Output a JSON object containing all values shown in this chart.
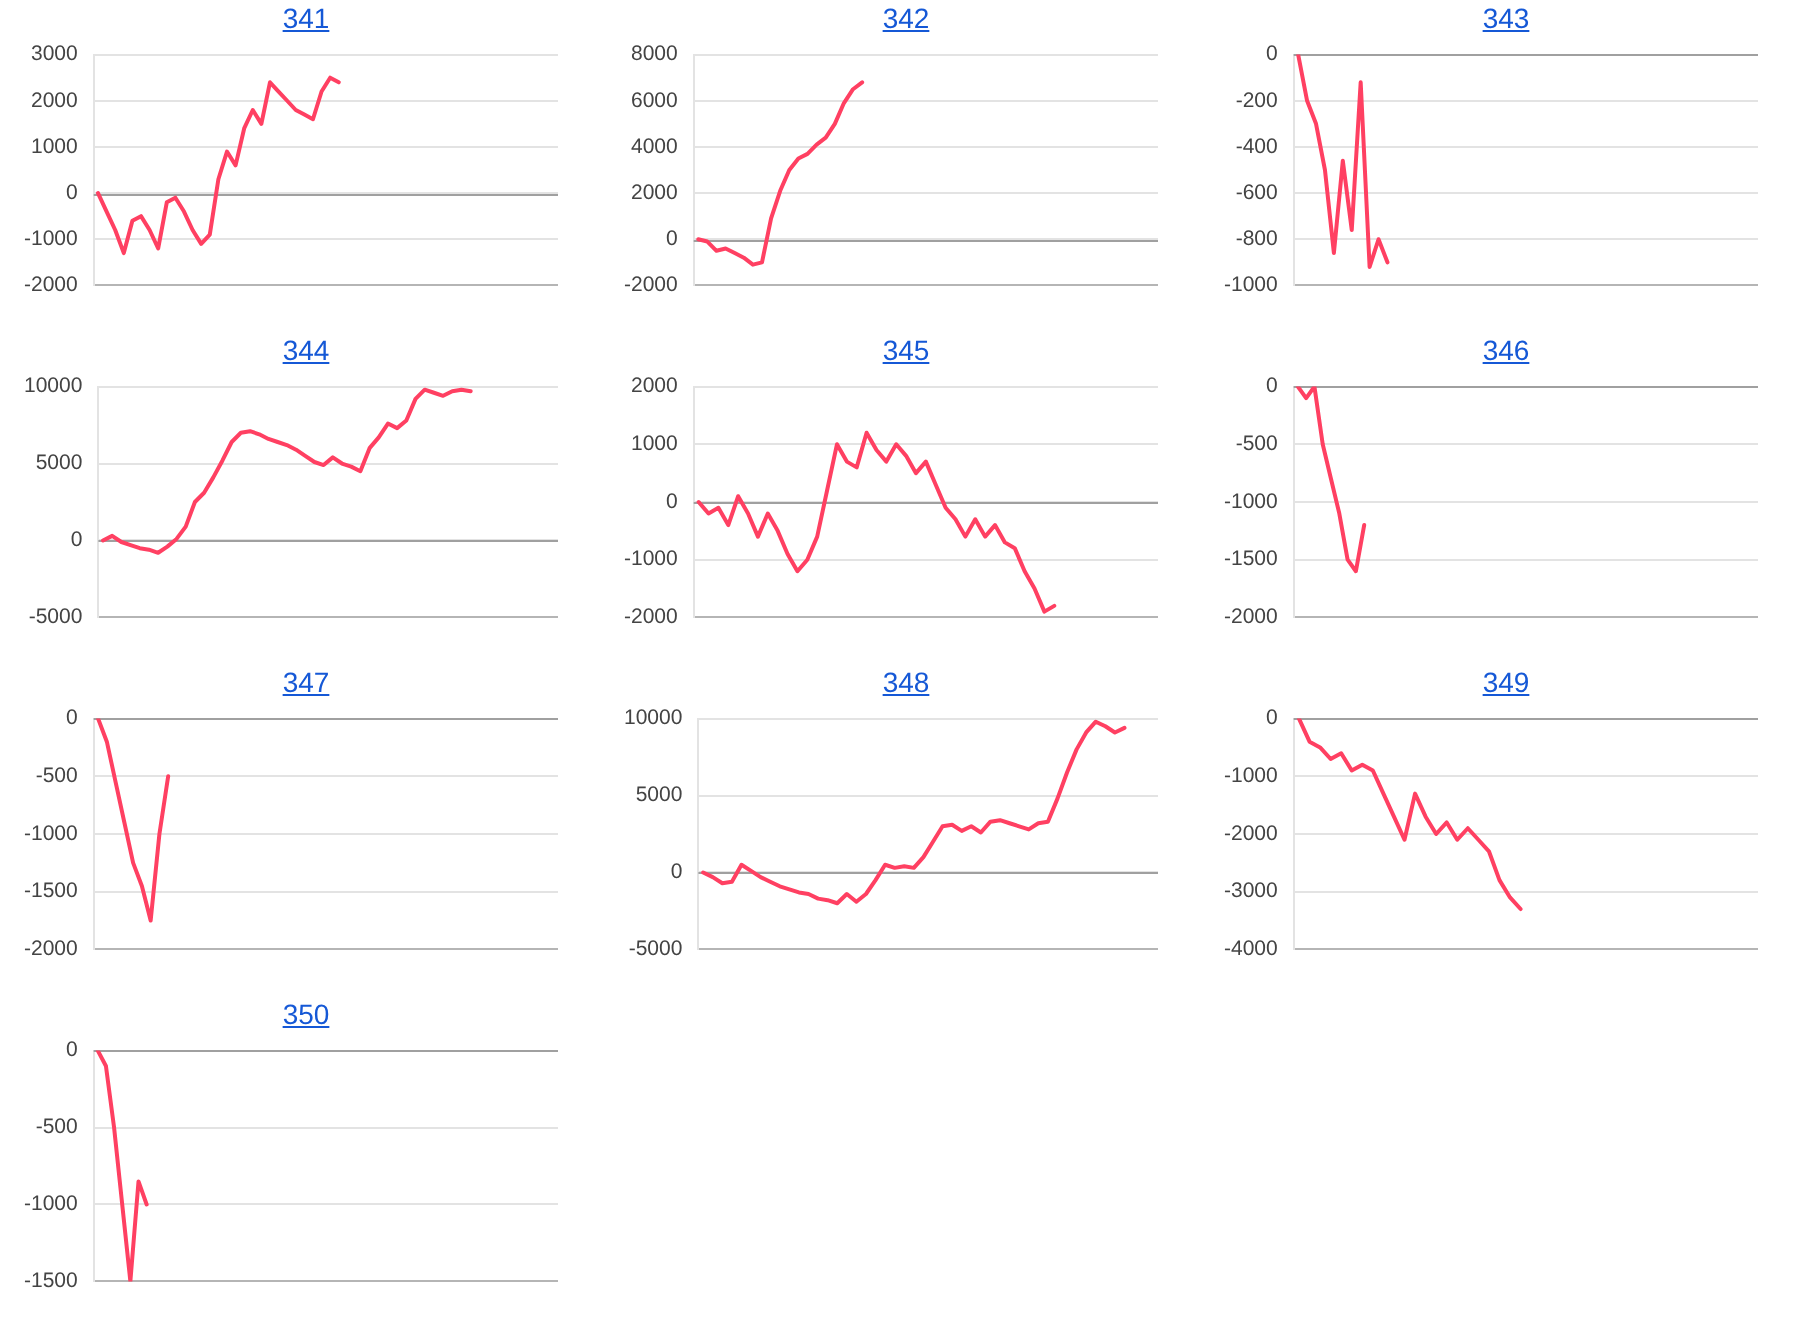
{
  "chart_data": [
    {
      "type": "line",
      "title": "341",
      "categories": [
        null,
        null,
        null,
        null,
        null,
        null,
        null,
        null,
        null,
        null,
        null,
        null,
        null,
        null,
        null,
        null,
        null,
        null,
        null,
        null,
        null,
        null,
        null,
        null,
        null,
        null,
        null,
        null,
        null,
        null,
        null,
        null,
        null,
        null,
        null,
        null,
        null,
        null,
        null,
        null,
        null,
        null,
        null,
        null,
        null,
        null,
        null,
        null,
        null,
        null,
        null,
        null,
        null,
        null
      ],
      "series": [
        {
          "color": "#ff4062",
          "values": [
            0,
            -400,
            -800,
            -1300,
            -600,
            -500,
            -800,
            -1200,
            -200,
            -100,
            -400,
            -800,
            -1100,
            -900,
            300,
            900,
            600,
            1400,
            1800,
            1500,
            2400,
            2200,
            2000,
            1800,
            1700,
            1600,
            2200,
            2500,
            2400,
            null,
            null,
            null,
            null,
            null,
            null,
            null,
            null,
            null,
            null,
            null,
            null,
            null,
            null,
            null,
            null,
            null,
            null,
            null,
            null,
            null,
            null,
            null,
            null,
            null
          ]
        }
      ],
      "ylim": [
        -2000,
        3000
      ],
      "yticks": [
        -2000,
        -1000,
        0,
        1000,
        2000,
        3000
      ],
      "grid": "y",
      "tick_labels": "y",
      "ref_lines": [
        {
          "axis": "y",
          "value": 0,
          "color": "#a0a0a0"
        }
      ]
    },
    {
      "type": "line",
      "title": "342",
      "categories": [
        null,
        null,
        null,
        null,
        null,
        null,
        null,
        null,
        null,
        null,
        null,
        null,
        null,
        null,
        null,
        null,
        null,
        null,
        null,
        null,
        null,
        null,
        null,
        null,
        null,
        null,
        null,
        null,
        null,
        null,
        null,
        null,
        null,
        null,
        null,
        null,
        null,
        null,
        null,
        null,
        null,
        null,
        null,
        null,
        null,
        null,
        null,
        null,
        null,
        null,
        null
      ],
      "series": [
        {
          "color": "#ff4062",
          "values": [
            0,
            -100,
            -500,
            -400,
            -600,
            -800,
            -1100,
            -1000,
            900,
            2100,
            3000,
            3500,
            3700,
            4100,
            4400,
            5000,
            5900,
            6500,
            6800,
            null,
            null,
            null,
            null,
            null,
            null,
            null,
            null,
            null,
            null,
            null,
            null,
            null,
            null,
            null,
            null,
            null,
            null,
            null,
            null,
            null,
            null,
            null,
            null,
            null,
            null,
            null,
            null,
            null,
            null,
            null,
            null
          ]
        }
      ],
      "ylim": [
        -2000,
        8000
      ],
      "yticks": [
        -2000,
        0,
        2000,
        4000,
        6000,
        8000
      ],
      "grid": "y",
      "tick_labels": "y",
      "ref_lines": [
        {
          "axis": "y",
          "value": 0,
          "color": "#a0a0a0"
        }
      ]
    },
    {
      "type": "line",
      "title": "343",
      "categories": [
        null,
        null,
        null,
        null,
        null,
        null,
        null,
        null,
        null,
        null,
        null,
        null,
        null,
        null,
        null,
        null,
        null,
        null,
        null,
        null,
        null,
        null,
        null,
        null,
        null,
        null,
        null,
        null,
        null,
        null,
        null,
        null,
        null,
        null,
        null,
        null,
        null,
        null,
        null,
        null,
        null,
        null,
        null,
        null,
        null,
        null,
        null,
        null,
        null,
        null,
        null,
        null
      ],
      "series": [
        {
          "color": "#ff4062",
          "values": [
            0,
            -200,
            -300,
            -500,
            -860,
            -460,
            -760,
            -120,
            -920,
            -800,
            -900,
            null,
            null,
            null,
            null,
            null,
            null,
            null,
            null,
            null,
            null,
            null,
            null,
            null,
            null,
            null,
            null,
            null,
            null,
            null,
            null,
            null,
            null,
            null,
            null,
            null,
            null,
            null,
            null,
            null,
            null,
            null,
            null,
            null,
            null,
            null,
            null,
            null,
            null,
            null,
            null,
            null
          ]
        }
      ],
      "ylim": [
        -1000,
        0
      ],
      "yticks": [
        -1000,
        -800,
        -600,
        -400,
        -200,
        0
      ],
      "grid": "y",
      "tick_labels": "y",
      "ref_lines": [
        {
          "axis": "y",
          "value": 0,
          "color": "#a0a0a0"
        }
      ]
    },
    {
      "type": "line",
      "title": "344",
      "categories": [
        null,
        null,
        null,
        null,
        null,
        null,
        null,
        null,
        null,
        null,
        null,
        null,
        null,
        null,
        null,
        null,
        null,
        null,
        null,
        null,
        null,
        null,
        null,
        null,
        null,
        null,
        null,
        null,
        null,
        null,
        null,
        null,
        null,
        null,
        null,
        null,
        null,
        null,
        null,
        null,
        null,
        null,
        null,
        null,
        null,
        null,
        null,
        null,
        null,
        null
      ],
      "series": [
        {
          "color": "#ff4062",
          "values": [
            0,
            300,
            -100,
            -300,
            -500,
            -600,
            -800,
            -400,
            100,
            900,
            2500,
            3100,
            4100,
            5200,
            6400,
            7000,
            7100,
            6900,
            6600,
            6400,
            6200,
            5900,
            5500,
            5100,
            4900,
            5400,
            5000,
            4800,
            4500,
            6000,
            6700,
            7600,
            7300,
            7800,
            9200,
            9800,
            9600,
            9400,
            9700,
            9800,
            9700,
            null,
            null,
            null,
            null,
            null,
            null,
            null,
            null,
            null
          ]
        }
      ],
      "ylim": [
        -5000,
        10000
      ],
      "yticks": [
        -5000,
        0,
        5000,
        10000
      ],
      "grid": "y",
      "tick_labels": "y",
      "ref_lines": [
        {
          "axis": "y",
          "value": 0,
          "color": "#a0a0a0"
        }
      ]
    },
    {
      "type": "line",
      "title": "345",
      "categories": [
        null,
        null,
        null,
        null,
        null,
        null,
        null,
        null,
        null,
        null,
        null,
        null,
        null,
        null,
        null,
        null,
        null,
        null,
        null,
        null,
        null,
        null,
        null,
        null,
        null,
        null,
        null,
        null,
        null,
        null,
        null,
        null,
        null,
        null,
        null,
        null,
        null,
        null,
        null,
        null,
        null,
        null,
        null,
        null,
        null,
        null,
        null
      ],
      "series": [
        {
          "color": "#ff4062",
          "values": [
            0,
            -200,
            -100,
            -400,
            100,
            -200,
            -600,
            -200,
            -500,
            -900,
            -1200,
            -1000,
            -600,
            200,
            1000,
            700,
            600,
            1200,
            900,
            700,
            1000,
            800,
            500,
            700,
            300,
            -100,
            -300,
            -600,
            -300,
            -600,
            -400,
            -700,
            -800,
            -1200,
            -1500,
            -1900,
            -1800,
            null,
            null,
            null,
            null,
            null,
            null,
            null,
            null,
            null,
            null
          ]
        }
      ],
      "ylim": [
        -2000,
        2000
      ],
      "yticks": [
        -2000,
        -1000,
        0,
        1000,
        2000
      ],
      "grid": "y",
      "tick_labels": "y",
      "ref_lines": [
        {
          "axis": "y",
          "value": 0,
          "color": "#a0a0a0"
        }
      ]
    },
    {
      "type": "line",
      "title": "346",
      "categories": [
        null,
        null,
        null,
        null,
        null,
        null,
        null,
        null,
        null,
        null,
        null,
        null,
        null,
        null,
        null,
        null,
        null,
        null,
        null,
        null,
        null,
        null,
        null,
        null,
        null,
        null,
        null,
        null,
        null,
        null,
        null,
        null,
        null,
        null,
        null,
        null,
        null,
        null,
        null,
        null,
        null,
        null,
        null,
        null,
        null,
        null,
        null,
        null,
        null,
        null,
        null,
        null,
        null,
        null,
        null,
        null
      ],
      "series": [
        {
          "color": "#ff4062",
          "values": [
            0,
            -100,
            0,
            -500,
            -800,
            -1100,
            -1500,
            -1600,
            -1200,
            null,
            null,
            null,
            null,
            null,
            null,
            null,
            null,
            null,
            null,
            null,
            null,
            null,
            null,
            null,
            null,
            null,
            null,
            null,
            null,
            null,
            null,
            null,
            null,
            null,
            null,
            null,
            null,
            null,
            null,
            null,
            null,
            null,
            null,
            null,
            null,
            null,
            null,
            null,
            null,
            null,
            null,
            null,
            null,
            null,
            null,
            null
          ]
        }
      ],
      "ylim": [
        -2000,
        0
      ],
      "yticks": [
        -2000,
        -1500,
        -1000,
        -500,
        0
      ],
      "grid": "y",
      "tick_labels": "y",
      "ref_lines": [
        {
          "axis": "y",
          "value": 0,
          "color": "#a0a0a0"
        }
      ]
    },
    {
      "type": "line",
      "title": "347",
      "categories": [
        null,
        null,
        null,
        null,
        null,
        null,
        null,
        null,
        null,
        null,
        null,
        null,
        null,
        null,
        null,
        null,
        null,
        null,
        null,
        null,
        null,
        null,
        null,
        null,
        null,
        null,
        null,
        null,
        null,
        null,
        null,
        null,
        null,
        null,
        null,
        null,
        null,
        null,
        null,
        null,
        null,
        null,
        null,
        null,
        null,
        null,
        null,
        null,
        null,
        null,
        null,
        null,
        null
      ],
      "series": [
        {
          "color": "#ff4062",
          "values": [
            0,
            -200,
            -550,
            -900,
            -1250,
            -1450,
            -1750,
            -1000,
            -500,
            null,
            null,
            null,
            null,
            null,
            null,
            null,
            null,
            null,
            null,
            null,
            null,
            null,
            null,
            null,
            null,
            null,
            null,
            null,
            null,
            null,
            null,
            null,
            null,
            null,
            null,
            null,
            null,
            null,
            null,
            null,
            null,
            null,
            null,
            null,
            null,
            null,
            null,
            null,
            null,
            null,
            null,
            null,
            null
          ]
        }
      ],
      "ylim": [
        -2000,
        0
      ],
      "yticks": [
        -2000,
        -1500,
        -1000,
        -500,
        0
      ],
      "grid": "y",
      "tick_labels": "y",
      "ref_lines": [
        {
          "axis": "y",
          "value": 0,
          "color": "#a0a0a0"
        }
      ]
    },
    {
      "type": "line",
      "title": "348",
      "categories": [
        null,
        null,
        null,
        null,
        null,
        null,
        null,
        null,
        null,
        null,
        null,
        null,
        null,
        null,
        null,
        null,
        null,
        null,
        null,
        null,
        null,
        null,
        null,
        null,
        null,
        null,
        null,
        null,
        null,
        null,
        null,
        null,
        null,
        null,
        null,
        null,
        null,
        null,
        null,
        null,
        null,
        null,
        null,
        null,
        null,
        null,
        null,
        null
      ],
      "series": [
        {
          "color": "#ff4062",
          "values": [
            0,
            -300,
            -700,
            -600,
            500,
            100,
            -300,
            -600,
            -900,
            -1100,
            -1300,
            -1400,
            -1700,
            -1800,
            -2000,
            -1400,
            -1900,
            -1400,
            -500,
            500,
            300,
            400,
            300,
            1000,
            2000,
            3000,
            3100,
            2700,
            3000,
            2600,
            3300,
            3400,
            3200,
            3000,
            2800,
            3200,
            3300,
            4800,
            6500,
            8000,
            9100,
            9800,
            9500,
            9100,
            9400,
            null,
            null,
            null
          ]
        }
      ],
      "ylim": [
        -5000,
        10000
      ],
      "yticks": [
        -5000,
        0,
        5000,
        10000
      ],
      "grid": "y",
      "tick_labels": "y",
      "ref_lines": [
        {
          "axis": "y",
          "value": 0,
          "color": "#a0a0a0"
        }
      ]
    },
    {
      "type": "line",
      "title": "349",
      "categories": [
        null,
        null,
        null,
        null,
        null,
        null,
        null,
        null,
        null,
        null,
        null,
        null,
        null,
        null,
        null,
        null,
        null,
        null,
        null,
        null,
        null,
        null,
        null,
        null,
        null,
        null,
        null,
        null,
        null,
        null,
        null,
        null,
        null,
        null,
        null,
        null,
        null,
        null,
        null,
        null,
        null,
        null,
        null,
        null
      ],
      "series": [
        {
          "color": "#ff4062",
          "values": [
            0,
            -400,
            -500,
            -700,
            -600,
            -900,
            -800,
            -900,
            -1300,
            -1700,
            -2100,
            -1300,
            -1700,
            -2000,
            -1800,
            -2100,
            -1900,
            -2100,
            -2300,
            -2800,
            -3100,
            -3300,
            null,
            null,
            null,
            null,
            null,
            null,
            null,
            null,
            null,
            null,
            null,
            null,
            null,
            null,
            null,
            null,
            null,
            null,
            null,
            null,
            null,
            null
          ]
        }
      ],
      "ylim": [
        -4000,
        0
      ],
      "yticks": [
        -4000,
        -3000,
        -2000,
        -1000,
        0
      ],
      "grid": "y",
      "tick_labels": "y",
      "ref_lines": [
        {
          "axis": "y",
          "value": 0,
          "color": "#a0a0a0"
        }
      ]
    },
    {
      "type": "line",
      "title": "350",
      "categories": [
        null,
        null,
        null,
        null,
        null,
        null,
        null,
        null,
        null,
        null,
        null,
        null,
        null,
        null,
        null,
        null,
        null,
        null,
        null,
        null,
        null,
        null,
        null,
        null,
        null,
        null,
        null,
        null,
        null,
        null,
        null,
        null,
        null,
        null,
        null,
        null,
        null,
        null,
        null,
        null,
        null,
        null,
        null,
        null,
        null,
        null,
        null,
        null,
        null,
        null,
        null,
        null,
        null,
        null,
        null,
        null,
        null
      ],
      "series": [
        {
          "color": "#ff4062",
          "values": [
            0,
            -100,
            -500,
            -1000,
            -1500,
            -850,
            -1000,
            null,
            null,
            null,
            null,
            null,
            null,
            null,
            null,
            null,
            null,
            null,
            null,
            null,
            null,
            null,
            null,
            null,
            null,
            null,
            null,
            null,
            null,
            null,
            null,
            null,
            null,
            null,
            null,
            null,
            null,
            null,
            null,
            null,
            null,
            null,
            null,
            null,
            null,
            null,
            null,
            null,
            null,
            null,
            null,
            null,
            null,
            null,
            null,
            null,
            null
          ]
        }
      ],
      "ylim": [
        -1500,
        0
      ],
      "yticks": [
        -1500,
        -1000,
        -500,
        0
      ],
      "grid": "y",
      "tick_labels": "y",
      "ref_lines": [
        {
          "axis": "y",
          "value": 0,
          "color": "#a0a0a0"
        }
      ]
    }
  ]
}
